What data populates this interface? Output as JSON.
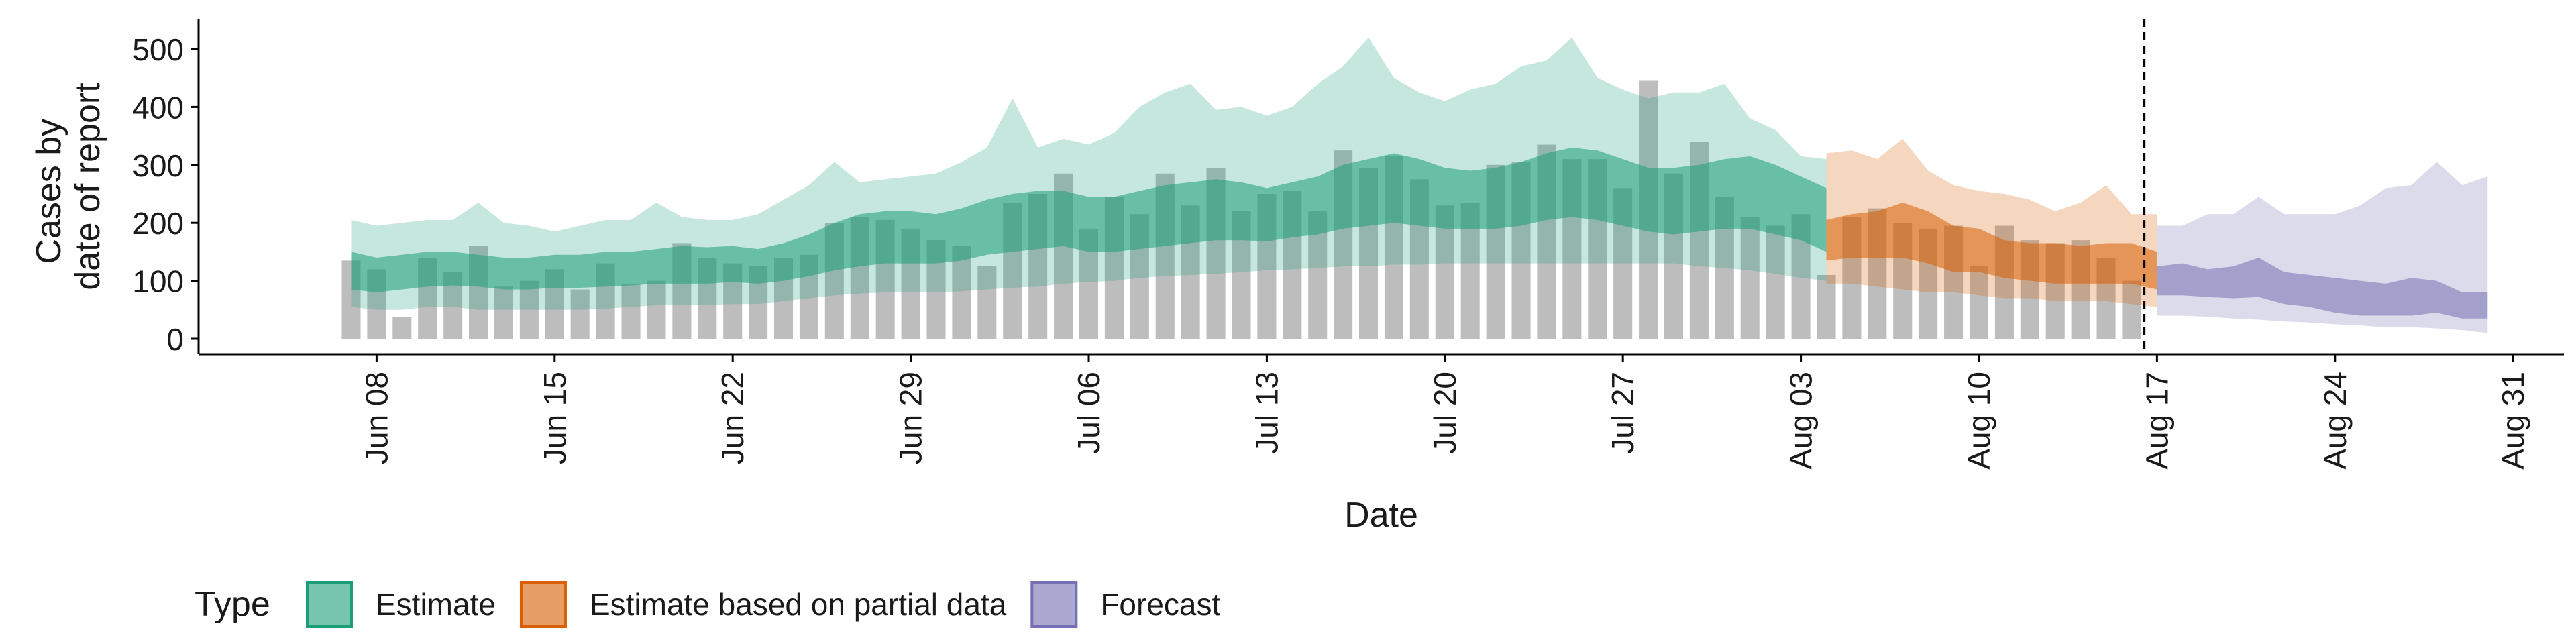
{
  "chart_data": {
    "type": "area",
    "xlabel": "Date",
    "ylabel": [
      "Cases by",
      "date of report"
    ],
    "ylim": [
      0,
      550
    ],
    "xlim": [
      "2020-06-01",
      "2020-09-02"
    ],
    "y_ticks": [
      0,
      100,
      200,
      300,
      400,
      500
    ],
    "x_ticks": [
      {
        "date": "2020-06-08",
        "label": "Jun 08"
      },
      {
        "date": "2020-06-15",
        "label": "Jun 15"
      },
      {
        "date": "2020-06-22",
        "label": "Jun 22"
      },
      {
        "date": "2020-06-29",
        "label": "Jun 29"
      },
      {
        "date": "2020-07-06",
        "label": "Jul 06"
      },
      {
        "date": "2020-07-13",
        "label": "Jul 13"
      },
      {
        "date": "2020-07-20",
        "label": "Jul 20"
      },
      {
        "date": "2020-07-27",
        "label": "Jul 27"
      },
      {
        "date": "2020-08-03",
        "label": "Aug 03"
      },
      {
        "date": "2020-08-10",
        "label": "Aug 10"
      },
      {
        "date": "2020-08-17",
        "label": "Aug 17"
      },
      {
        "date": "2020-08-24",
        "label": "Aug 24"
      },
      {
        "date": "2020-08-31",
        "label": "Aug 31"
      }
    ],
    "vline_date": "2020-08-16",
    "grid": false,
    "legend": {
      "title": "Type",
      "position": "bottom",
      "items": [
        {
          "label": "Estimate",
          "color": "#1b9e77"
        },
        {
          "label": "Estimate based on partial data",
          "color": "#d95f02"
        },
        {
          "label": "Forecast",
          "color": "#7570b3"
        }
      ]
    },
    "bar_color": "#bdbdbd",
    "bars": {
      "start_date": "2020-06-07",
      "values": [
        135,
        120,
        38,
        140,
        115,
        160,
        90,
        100,
        120,
        85,
        130,
        95,
        100,
        165,
        140,
        130,
        125,
        140,
        145,
        200,
        210,
        205,
        190,
        170,
        160,
        125,
        235,
        250,
        285,
        190,
        245,
        215,
        285,
        230,
        295,
        220,
        250,
        255,
        220,
        325,
        295,
        315,
        275,
        230,
        235,
        300,
        305,
        335,
        310,
        310,
        260,
        445,
        285,
        340,
        245,
        210,
        195,
        215,
        110,
        210,
        225,
        200,
        190,
        195,
        125,
        195,
        170,
        165,
        170,
        140,
        100
      ]
    },
    "series": [
      {
        "name": "Estimate",
        "color": "#1b9e77",
        "start_date": "2020-06-07",
        "outer_low": [
          55,
          50,
          50,
          55,
          55,
          50,
          50,
          50,
          50,
          50,
          52,
          55,
          58,
          58,
          58,
          60,
          60,
          65,
          70,
          75,
          78,
          80,
          80,
          80,
          82,
          85,
          88,
          90,
          95,
          98,
          100,
          105,
          108,
          110,
          112,
          115,
          118,
          120,
          122,
          125,
          125,
          128,
          128,
          130,
          130,
          130,
          130,
          130,
          130,
          130,
          130,
          130,
          130,
          125,
          122,
          118,
          112,
          105,
          100
        ],
        "inner_low": [
          85,
          80,
          85,
          90,
          92,
          90,
          85,
          85,
          88,
          88,
          90,
          92,
          95,
          95,
          95,
          98,
          95,
          100,
          108,
          118,
          125,
          130,
          130,
          130,
          135,
          145,
          150,
          155,
          160,
          150,
          150,
          155,
          160,
          165,
          170,
          170,
          168,
          175,
          180,
          190,
          195,
          200,
          195,
          190,
          190,
          190,
          195,
          205,
          210,
          205,
          195,
          185,
          180,
          185,
          190,
          190,
          180,
          170,
          150
        ],
        "inner_high": [
          150,
          140,
          145,
          150,
          150,
          145,
          140,
          140,
          145,
          145,
          150,
          150,
          155,
          160,
          158,
          160,
          155,
          165,
          180,
          200,
          215,
          220,
          220,
          215,
          225,
          240,
          250,
          255,
          255,
          245,
          245,
          255,
          265,
          270,
          275,
          270,
          260,
          270,
          280,
          300,
          310,
          320,
          310,
          295,
          290,
          295,
          305,
          320,
          330,
          325,
          310,
          295,
          295,
          300,
          310,
          315,
          300,
          280,
          260
        ],
        "outer_high": [
          205,
          195,
          200,
          205,
          205,
          235,
          200,
          195,
          185,
          195,
          205,
          205,
          235,
          210,
          205,
          205,
          215,
          240,
          265,
          305,
          270,
          275,
          280,
          285,
          305,
          330,
          415,
          330,
          345,
          335,
          355,
          400,
          425,
          440,
          395,
          400,
          385,
          400,
          440,
          470,
          520,
          450,
          425,
          410,
          430,
          440,
          470,
          480,
          520,
          450,
          430,
          415,
          425,
          425,
          440,
          380,
          360,
          315,
          310
        ]
      },
      {
        "name": "Estimate based on partial data",
        "color": "#d95f02",
        "start_date": "2020-08-04",
        "outer_low": [
          95,
          95,
          90,
          85,
          80,
          80,
          75,
          70,
          70,
          65,
          65,
          65,
          60,
          55
        ],
        "inner_low": [
          135,
          140,
          140,
          140,
          130,
          115,
          115,
          105,
          100,
          95,
          95,
          95,
          95,
          85
        ],
        "inner_high": [
          205,
          215,
          220,
          235,
          220,
          195,
          190,
          170,
          165,
          165,
          160,
          165,
          165,
          150
        ],
        "outer_high": [
          320,
          325,
          310,
          345,
          290,
          265,
          255,
          250,
          240,
          220,
          235,
          265,
          215,
          215
        ]
      },
      {
        "name": "Forecast",
        "color": "#7570b3",
        "start_date": "2020-08-17",
        "outer_low": [
          40,
          40,
          38,
          35,
          33,
          30,
          28,
          25,
          23,
          20,
          20,
          18,
          15,
          10
        ],
        "inner_low": [
          75,
          75,
          72,
          70,
          72,
          60,
          55,
          45,
          40,
          40,
          40,
          45,
          35,
          35
        ],
        "inner_high": [
          125,
          130,
          120,
          125,
          140,
          115,
          110,
          105,
          100,
          95,
          105,
          100,
          80,
          80
        ],
        "outer_high": [
          195,
          195,
          215,
          215,
          245,
          215,
          215,
          215,
          230,
          260,
          265,
          305,
          265,
          280
        ]
      }
    ]
  }
}
